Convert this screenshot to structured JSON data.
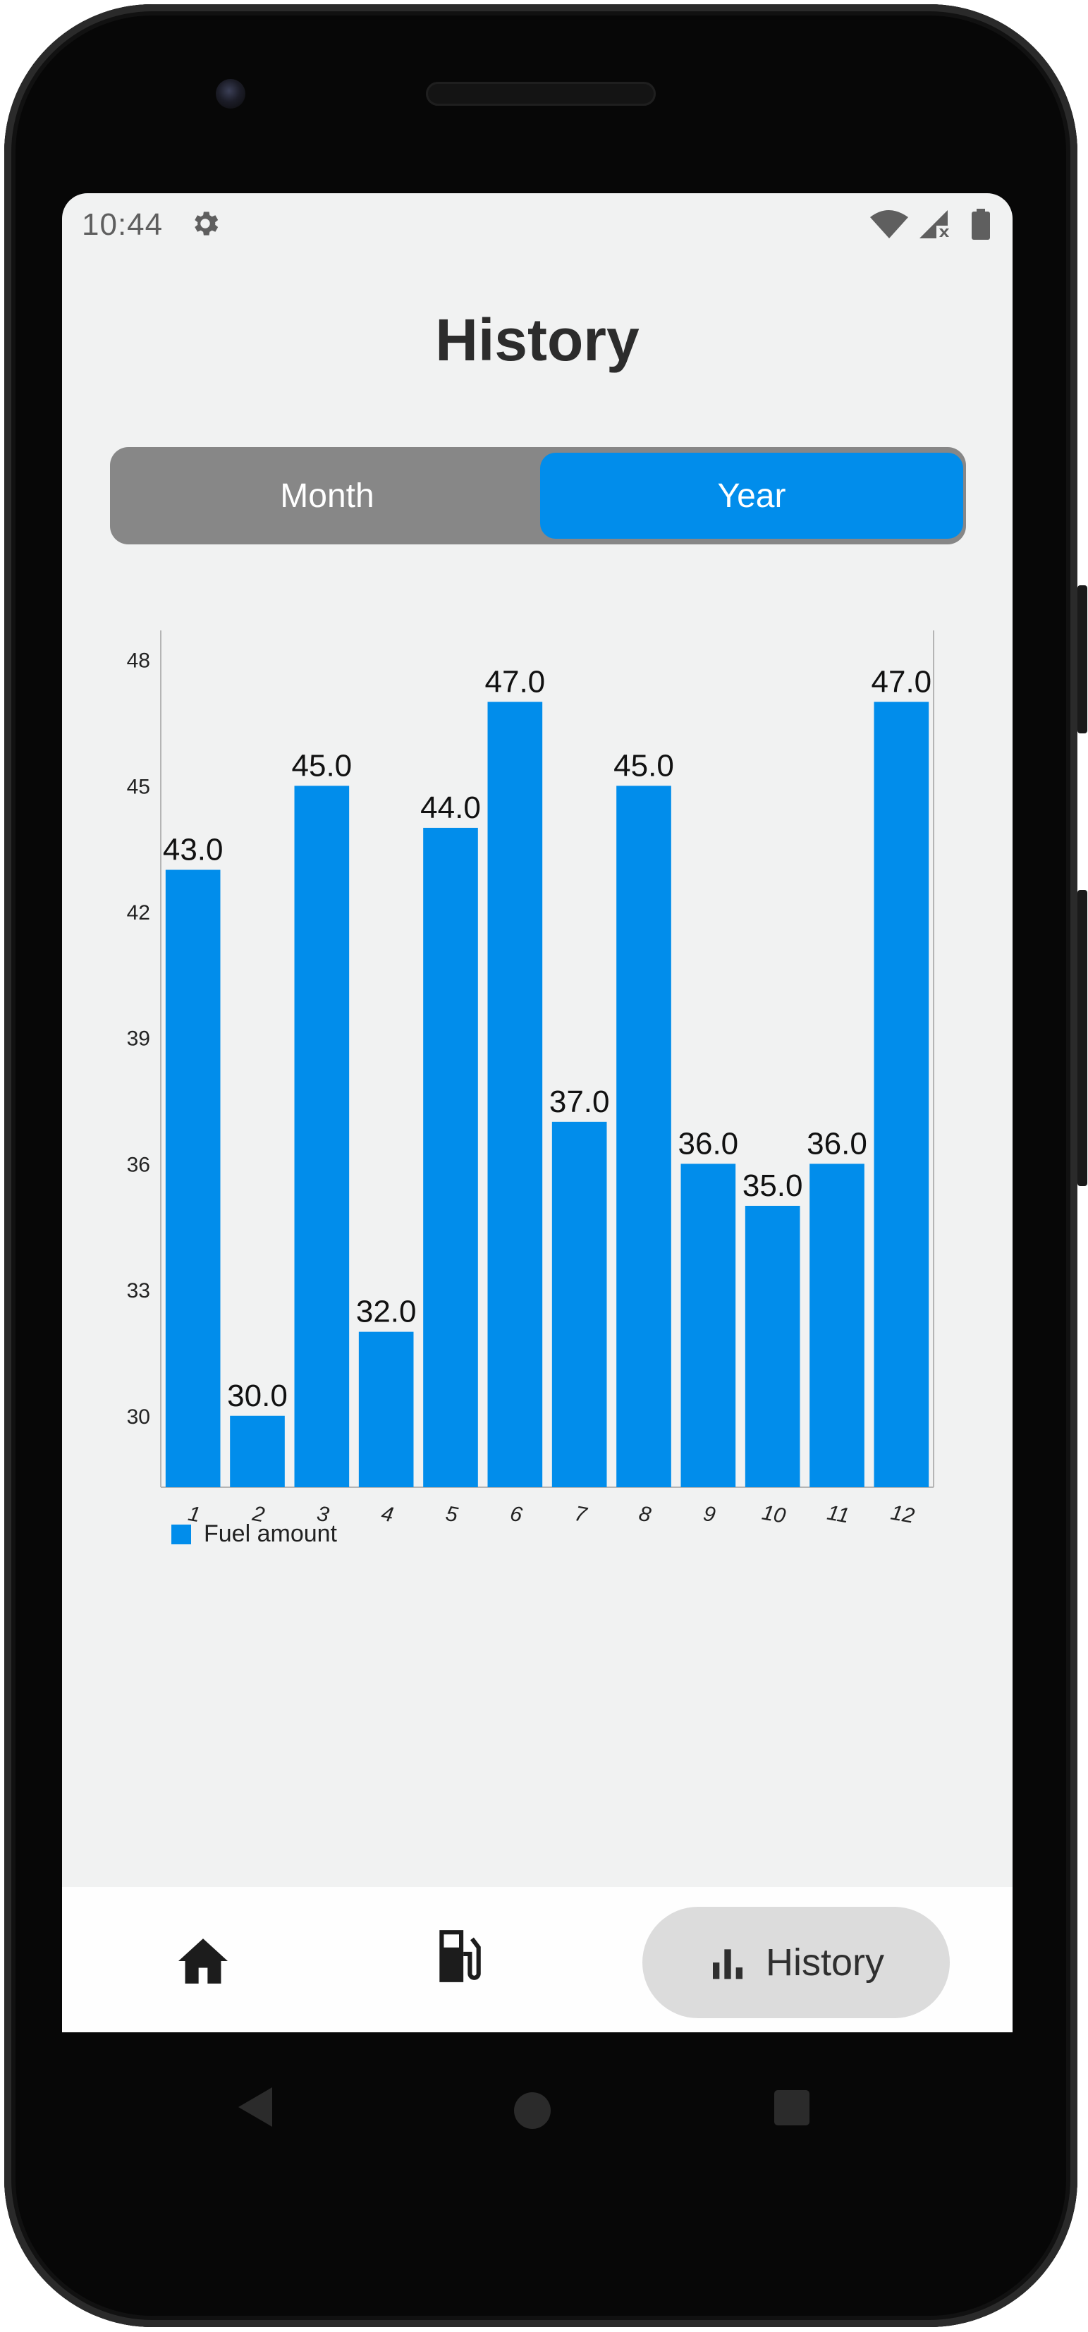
{
  "status_bar": {
    "time": "10:44",
    "icons": [
      "settings-icon",
      "wifi-icon",
      "signal-off-icon",
      "battery-icon"
    ]
  },
  "page": {
    "title": "History"
  },
  "period_toggle": {
    "options": [
      "Month",
      "Year"
    ],
    "selected": "Year"
  },
  "bottom_nav": {
    "items": [
      {
        "icon": "home-icon",
        "label": ""
      },
      {
        "icon": "fuel-pump-icon",
        "label": ""
      },
      {
        "icon": "bar-chart-icon",
        "label": "History"
      }
    ],
    "active": "History"
  },
  "colors": {
    "accent": "#018deb",
    "toggle_background": "#878787",
    "screen_background": "#f1f2f2",
    "nav_active_pill": "#dcdcdc"
  },
  "chart_data": {
    "type": "bar",
    "categories": [
      "1",
      "2",
      "3",
      "4",
      "5",
      "6",
      "7",
      "8",
      "9",
      "10",
      "11",
      "12"
    ],
    "series": [
      {
        "name": "Fuel amount",
        "values": [
          43.0,
          30.0,
          45.0,
          32.0,
          44.0,
          47.0,
          37.0,
          45.0,
          36.0,
          35.0,
          36.0,
          47.0
        ],
        "color": "#018deb"
      }
    ],
    "value_labels": [
      "43.0",
      "30.0",
      "45.0",
      "32.0",
      "44.0",
      "47.0",
      "37.0",
      "45.0",
      "36.0",
      "35.0",
      "36.0",
      "47.0"
    ],
    "y_ticks": [
      30,
      33,
      36,
      39,
      42,
      45,
      48
    ],
    "ylim": [
      28.3,
      48.7
    ],
    "title": "",
    "xlabel": "",
    "ylabel": "",
    "grid": false,
    "legend": "bottom-left"
  }
}
